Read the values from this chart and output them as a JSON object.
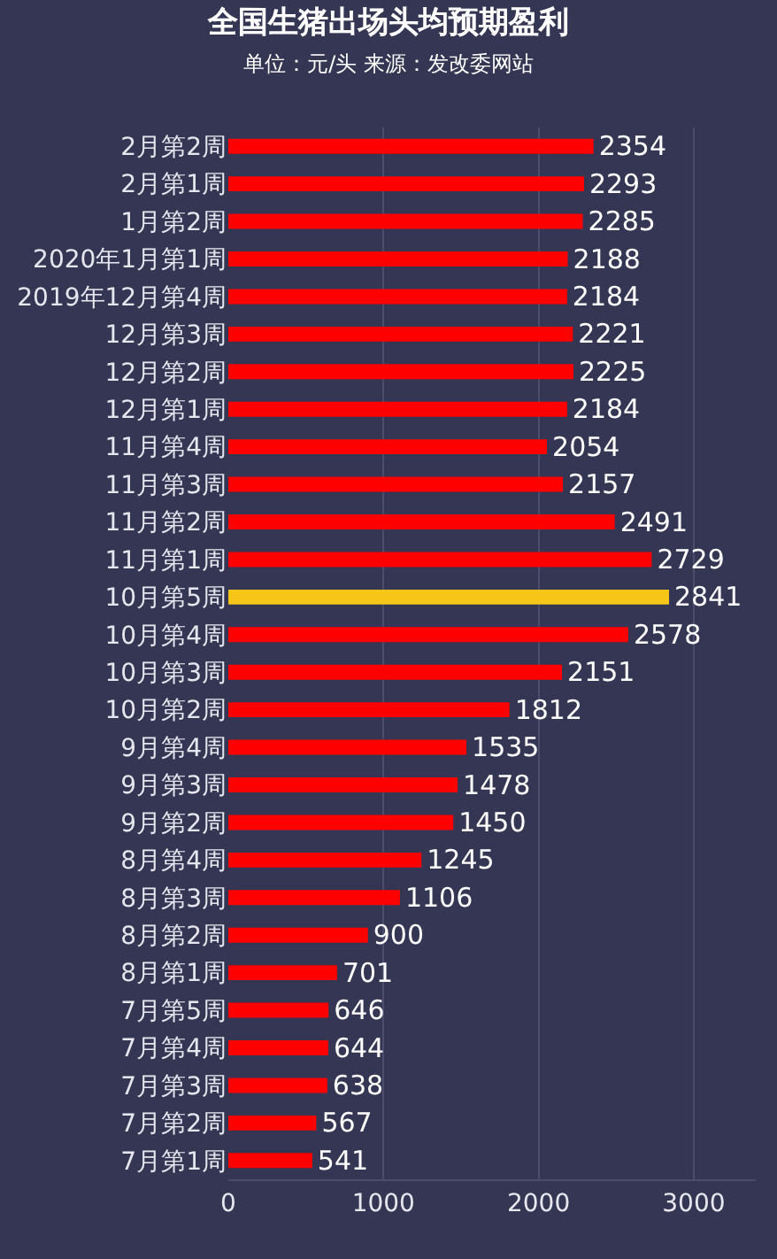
{
  "chart_data": {
    "type": "bar",
    "orientation": "horizontal",
    "title": "全国生猪出场头均预期盈利",
    "subtitle": "单位：元/头 来源：发改委网站",
    "categories": [
      "2月第2周",
      "2月第1周",
      "1月第2周",
      "2020年1月第1周",
      "2019年12月第4周",
      "12月第3周",
      "12月第2周",
      "12月第1周",
      "11月第4周",
      "11月第3周",
      "11月第2周",
      "11月第1周",
      "10月第5周",
      "10月第4周",
      "10月第3周",
      "10月第2周",
      "9月第4周",
      "9月第3周",
      "9月第2周",
      "8月第4周",
      "8月第3周",
      "8月第2周",
      "8月第1周",
      "7月第5周",
      "7月第4周",
      "7月第3周",
      "7月第2周",
      "7月第1周"
    ],
    "values": [
      2354,
      2293,
      2285,
      2188,
      2184,
      2221,
      2225,
      2184,
      2054,
      2157,
      2491,
      2729,
      2841,
      2578,
      2151,
      1812,
      1535,
      1478,
      1450,
      1245,
      1106,
      900,
      701,
      646,
      644,
      638,
      567,
      541
    ],
    "colors": [
      "#ff0000",
      "#ff0000",
      "#ff0000",
      "#ff0000",
      "#ff0000",
      "#ff0000",
      "#ff0000",
      "#ff0000",
      "#ff0000",
      "#ff0000",
      "#ff0000",
      "#ff0000",
      "#f5c518",
      "#ff0000",
      "#ff0000",
      "#ff0000",
      "#ff0000",
      "#ff0000",
      "#ff0000",
      "#ff0000",
      "#ff0000",
      "#ff0000",
      "#ff0000",
      "#ff0000",
      "#ff0000",
      "#ff0000",
      "#ff0000",
      "#ff0000"
    ],
    "xlim": [
      0,
      3400
    ],
    "xticks": [
      0,
      1000,
      2000,
      3000
    ],
    "grid": "x",
    "data_labels": true,
    "legend": false
  }
}
